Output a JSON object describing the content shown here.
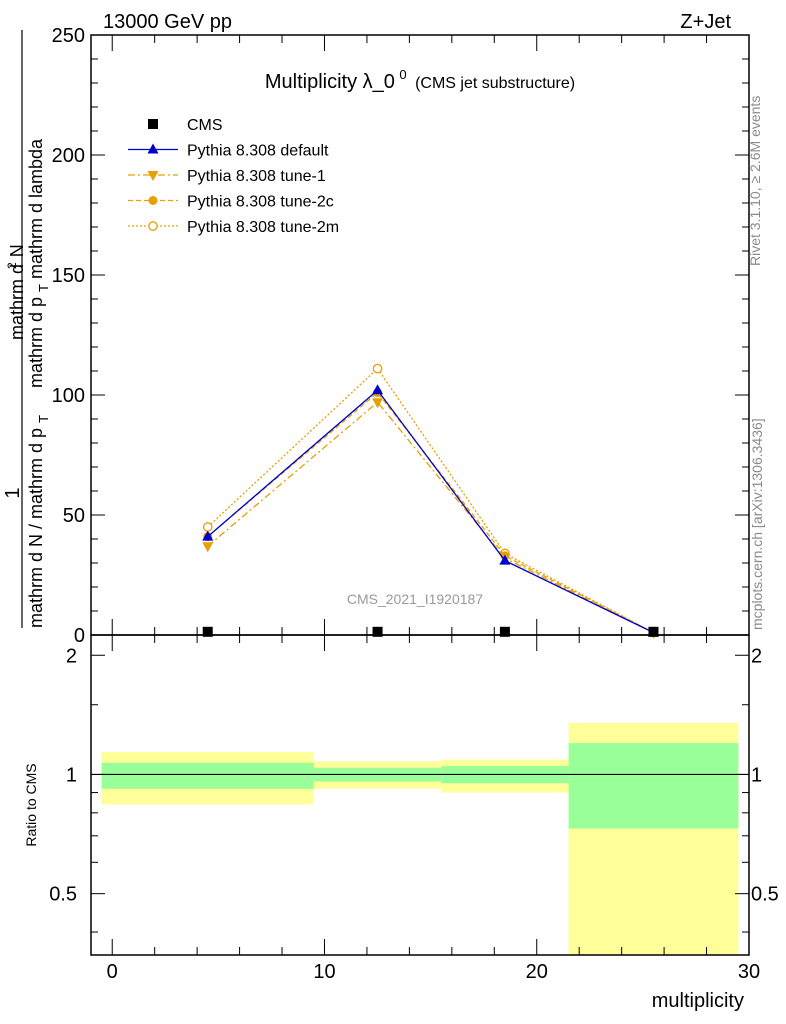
{
  "header": {
    "left": "13000 GeV pp",
    "right": "Z+Jet"
  },
  "side_labels": {
    "rivet": "Rivet 3.1.10, ≥ 2.6M events",
    "mcplots": "mcplots.cern.ch [arXiv:1306.3436]"
  },
  "watermark": "CMS_2021_I1920187",
  "colors": {
    "cms": "#000000",
    "default": "#0000cc",
    "tunes": "#e6a000",
    "band_inner": "#99ff99",
    "band_outer": "#ffff99"
  },
  "chart_data": [
    {
      "type": "line",
      "title": {
        "main": "Multiplicity λ_0",
        "sup": "0",
        "sub": "(CMS jet substructure)"
      },
      "ylabel": {
        "numerator": "1",
        "denominator": "mathrm d N / mathrm d p",
        "den_sub": "T",
        "frac2_num": "mathrm d",
        "frac2_num_sup": "2",
        "frac2_num_tail": "N",
        "frac2_den": "mathrm d p",
        "frac2_den_sub": "T",
        "frac2_den_tail": " mathrm d lambda"
      },
      "xlim": [
        -1,
        30
      ],
      "ylim": [
        0,
        250
      ],
      "yticks": [
        0,
        50,
        100,
        150,
        200,
        250
      ],
      "legend_position": "top-left",
      "series": [
        {
          "name": "CMS",
          "style": "data",
          "x": [
            4.5,
            12.5,
            18.5,
            25.5
          ],
          "y": [
            0.5,
            0.5,
            0.5,
            0.5
          ]
        },
        {
          "name": "Pythia 8.308 default",
          "style": "default",
          "x": [
            4.5,
            12.5,
            18.5,
            25.5
          ],
          "y": [
            41,
            102,
            31,
            1
          ]
        },
        {
          "name": "Pythia 8.308 tune-1",
          "style": "tune1",
          "x": [
            4.5,
            12.5,
            18.5,
            25.5
          ],
          "y": [
            37,
            97,
            32,
            1
          ]
        },
        {
          "name": "Pythia 8.308 tune-2c",
          "style": "tune2c",
          "x": [
            4.5,
            12.5,
            18.5,
            25.5
          ],
          "y": [
            41,
            101,
            33,
            1
          ]
        },
        {
          "name": "Pythia 8.308 tune-2m",
          "style": "tune2m",
          "x": [
            4.5,
            12.5,
            18.5,
            25.5
          ],
          "y": [
            45,
            111,
            34,
            1
          ]
        }
      ]
    },
    {
      "type": "area",
      "ylabel": "Ratio to CMS",
      "xlabel": "multiplicity",
      "xlim": [
        -1,
        30
      ],
      "ylim": [
        0.35,
        2.25
      ],
      "yticks": [
        0.5,
        1,
        2
      ],
      "xticks": [
        0,
        10,
        20,
        30
      ],
      "reference_line": 1,
      "bins": [
        {
          "x0": -0.5,
          "x1": 9.5,
          "inner": [
            0.92,
            1.07
          ],
          "outer": [
            0.84,
            1.14
          ]
        },
        {
          "x0": 9.5,
          "x1": 15.5,
          "inner": [
            0.96,
            1.04
          ],
          "outer": [
            0.92,
            1.08
          ]
        },
        {
          "x0": 15.5,
          "x1": 21.5,
          "inner": [
            0.95,
            1.05
          ],
          "outer": [
            0.9,
            1.09
          ]
        },
        {
          "x0": 21.5,
          "x1": 29.5,
          "inner": [
            0.73,
            1.2
          ],
          "outer": [
            0.35,
            1.35
          ]
        }
      ]
    }
  ]
}
